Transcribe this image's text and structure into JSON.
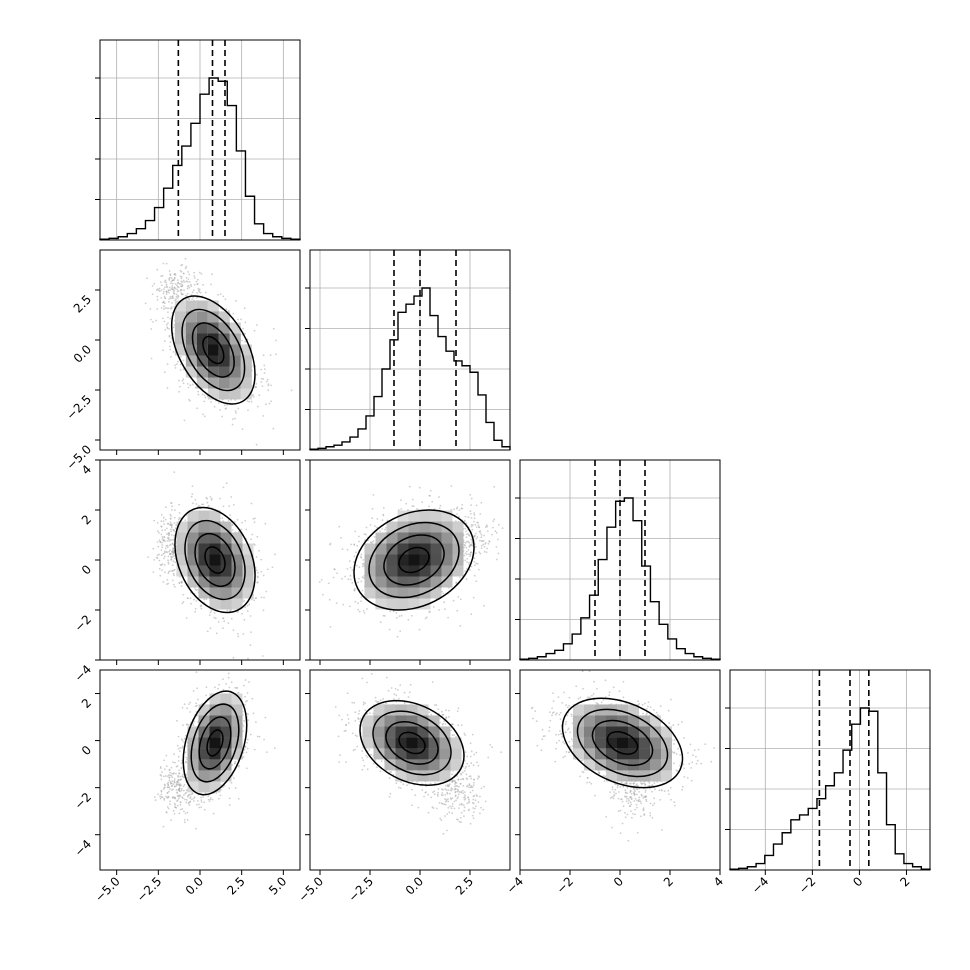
{
  "chart_data": {
    "type": "corner",
    "parameters": [
      {
        "ticks": [
          -5.0,
          -2.5,
          0.0,
          2.5,
          5.0
        ],
        "tick_labels": [
          "−5.0",
          "−2.5",
          "0.0",
          "2.5",
          "5.0"
        ],
        "range": [
          -6.0,
          6.0
        ],
        "quantiles": [
          -1.3,
          0.75,
          1.5
        ],
        "histogram": [
          0.005,
          0.01,
          0.02,
          0.04,
          0.07,
          0.12,
          0.2,
          0.32,
          0.46,
          0.58,
          0.72,
          0.9,
          1.0,
          0.98,
          0.83,
          0.55,
          0.27,
          0.1,
          0.04,
          0.02,
          0.01,
          0.005
        ]
      },
      {
        "ticks": [
          -5.0,
          -2.5,
          0.0,
          2.5
        ],
        "tick_labels": [
          "−5.0",
          "−2.5",
          "0.0",
          "2.5"
        ],
        "range": [
          -5.5,
          4.5
        ],
        "quantiles": [
          -1.3,
          0.0,
          1.8
        ],
        "histogram": [
          0.005,
          0.01,
          0.02,
          0.03,
          0.05,
          0.08,
          0.13,
          0.21,
          0.33,
          0.5,
          0.68,
          0.85,
          0.9,
          0.95,
          1.0,
          0.83,
          0.7,
          0.61,
          0.55,
          0.52,
          0.48,
          0.34,
          0.17,
          0.06,
          0.02
        ]
      },
      {
        "ticks": [
          -4,
          -2,
          0,
          2,
          4
        ],
        "tick_labels": [
          "−4",
          "−2",
          "0",
          "2",
          "4"
        ],
        "range": [
          -4,
          4
        ],
        "quantiles": [
          -1.0,
          0.0,
          1.0
        ],
        "histogram": [
          0.005,
          0.01,
          0.02,
          0.04,
          0.06,
          0.1,
          0.16,
          0.26,
          0.4,
          0.62,
          0.82,
          0.98,
          1.0,
          0.86,
          0.58,
          0.36,
          0.22,
          0.13,
          0.07,
          0.04,
          0.02,
          0.01,
          0.005
        ]
      },
      {
        "ticks": [
          -4,
          -2,
          0,
          2
        ],
        "tick_labels": [
          "−4",
          "−2",
          "0",
          "2"
        ],
        "range": [
          -5.5,
          3.0
        ],
        "quantiles": [
          -1.7,
          -0.4,
          0.4
        ],
        "histogram": [
          0.005,
          0.01,
          0.02,
          0.04,
          0.09,
          0.16,
          0.23,
          0.31,
          0.34,
          0.38,
          0.44,
          0.52,
          0.6,
          0.74,
          0.9,
          1.0,
          0.98,
          0.6,
          0.28,
          0.1,
          0.04,
          0.02,
          0.005
        ]
      }
    ],
    "pairs": [
      {
        "row": 1,
        "col": 0,
        "center": [
          0.8,
          -0.5
        ],
        "sigma": [
          1.25,
          1.35
        ],
        "rho": -0.45,
        "blobs": [
          [
            -1.4,
            2.5,
            0.7,
            0.6
          ]
        ]
      },
      {
        "row": 2,
        "col": 0,
        "center": [
          0.9,
          0.0
        ],
        "sigma": [
          1.2,
          1.05
        ],
        "rho": -0.3,
        "blobs": [
          [
            -1.6,
            0.6,
            0.6,
            0.6
          ]
        ]
      },
      {
        "row": 2,
        "col": 1,
        "center": [
          -0.3,
          0.0
        ],
        "sigma": [
          1.5,
          1.0
        ],
        "rho": 0.25,
        "blobs": [
          [
            2.2,
            0.8,
            0.9,
            0.5
          ]
        ]
      },
      {
        "row": 3,
        "col": 0,
        "center": [
          0.9,
          -0.1
        ],
        "sigma": [
          0.95,
          1.1
        ],
        "rho": 0.35,
        "blobs": [
          [
            -1.3,
            -2.0,
            0.6,
            0.5
          ]
        ]
      },
      {
        "row": 3,
        "col": 1,
        "center": [
          -0.4,
          -0.1
        ],
        "sigma": [
          1.3,
          0.9
        ],
        "rho": -0.3,
        "blobs": [
          [
            1.8,
            -2.2,
            0.7,
            0.7
          ]
        ]
      },
      {
        "row": 3,
        "col": 2,
        "center": [
          0.1,
          -0.1
        ],
        "sigma": [
          1.2,
          0.95
        ],
        "rho": -0.35,
        "blobs": [
          [
            0.5,
            -1.9,
            0.5,
            0.7
          ]
        ]
      }
    ],
    "grid": true,
    "xlabel": "",
    "ylabel": ""
  },
  "colors": {
    "line": "#000000",
    "grid": "#b0b0b0",
    "scatter": "#a8a8a8",
    "background": "#ffffff"
  }
}
